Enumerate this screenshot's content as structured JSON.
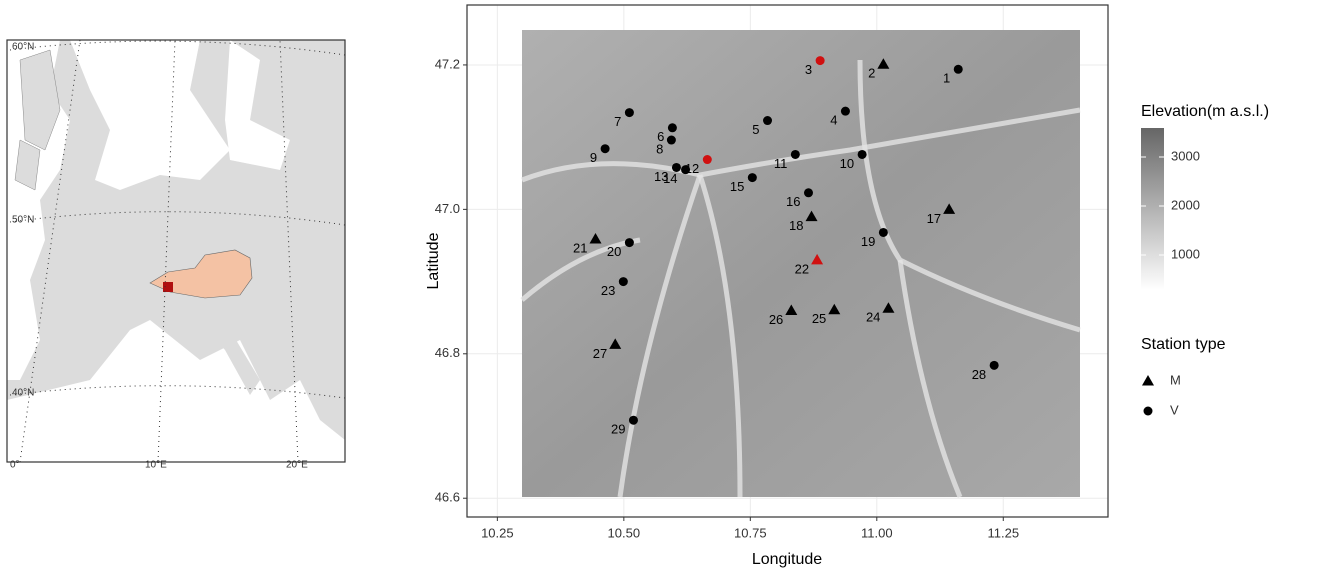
{
  "chart_data": [
    {
      "type": "map",
      "lat_labels": [
        "60°N",
        "50°N",
        "40°N"
      ],
      "lon_labels": [
        "0°",
        "10°E",
        "20°E"
      ]
    },
    {
      "type": "scatter",
      "x_label": "Longitude",
      "y_label": "Latitude",
      "xlim": [
        10.19,
        11.457
      ],
      "ylim": [
        46.574,
        47.283
      ],
      "xticks": [
        10.25,
        {
          "value": 10.5,
          "label": "10.50"
        },
        10.75,
        {
          "value": 11,
          "label": "11.00"
        },
        11.25
      ],
      "yticks": [
        46.6,
        46.8,
        {
          "value": 47,
          "label": "47.0"
        },
        47.2
      ],
      "grid": true,
      "labels": [
        "1",
        "2",
        "3",
        "4",
        "5",
        "6",
        "7",
        "8",
        "9",
        "10",
        "11",
        "12",
        "13",
        "14",
        "15",
        "16",
        "17",
        "18",
        "19",
        "20",
        "21",
        "22",
        "23",
        "24",
        "25",
        "26",
        "27",
        "28",
        "29"
      ],
      "x": [
        11.161,
        11.013,
        10.888,
        10.938,
        10.784,
        10.596,
        10.511,
        10.594,
        10.463,
        10.971,
        10.839,
        10.665,
        10.604,
        10.622,
        10.754,
        10.865,
        11.143,
        10.871,
        11.013,
        10.511,
        10.444,
        10.882,
        10.499,
        11.023,
        10.916,
        10.831,
        10.483,
        11.232,
        10.519
      ],
      "y": [
        47.194,
        47.201,
        47.206,
        47.136,
        47.123,
        47.113,
        47.134,
        47.096,
        47.084,
        47.076,
        47.076,
        47.069,
        47.058,
        47.055,
        47.044,
        47.023,
        47.0,
        46.99,
        46.968,
        46.954,
        46.959,
        46.93,
        46.9,
        46.863,
        46.861,
        46.86,
        46.813,
        46.784,
        46.708
      ],
      "station_type": [
        "V",
        "M",
        "V",
        "V",
        "V",
        "V",
        "V",
        "V",
        "V",
        "V",
        "V",
        "V",
        "V",
        "V",
        "V",
        "V",
        "M",
        "M",
        "V",
        "V",
        "M",
        "M",
        "V",
        "M",
        "M",
        "M",
        "M",
        "V",
        "V"
      ],
      "colors": [
        "#000000",
        "#000000",
        "#d01010",
        "#000000",
        "#000000",
        "#000000",
        "#000000",
        "#000000",
        "#000000",
        "#000000",
        "#000000",
        "#d01010",
        "#000000",
        "#000000",
        "#000000",
        "#000000",
        "#000000",
        "#000000",
        "#000000",
        "#000000",
        "#000000",
        "#d01010",
        "#000000",
        "#000000",
        "#000000",
        "#000000",
        "#000000",
        "#000000",
        "#000000"
      ],
      "legend": {
        "title": "Station type",
        "entries": [
          {
            "name": "M",
            "marker": "triangle"
          },
          {
            "name": "V",
            "marker": "circle"
          }
        ]
      },
      "colorbar": {
        "title": "Elevation(m a.s.l.)",
        "lim": [
          286,
          3592
        ],
        "ticks": [
          1000,
          2000,
          3000
        ]
      }
    }
  ]
}
